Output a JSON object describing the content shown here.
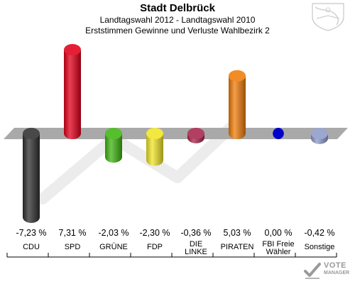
{
  "header": {
    "title": "Stadt Delbrück",
    "subtitle": "Landtagswahl 2012 - Landtagswahl 2010",
    "subtitle2": "Erststimmen Gewinne und Verluste Wahlbezirk 2"
  },
  "logo": {
    "line1": "VOTE",
    "line2": "MANAGER"
  },
  "chart_data": {
    "type": "bar",
    "title": "Landtagswahl 2012 - Landtagswahl 2010",
    "categories": [
      "CDU",
      "SPD",
      "GRÜNE",
      "FDP",
      "DIE LINKE",
      "PIRATEN",
      "FBI Freie Wähler",
      "Sonstige"
    ],
    "category_lines": [
      [
        "CDU"
      ],
      [
        "SPD"
      ],
      [
        "GRÜNE"
      ],
      [
        "FDP"
      ],
      [
        "DIE",
        "LINKE"
      ],
      [
        "PIRATEN"
      ],
      [
        "FBI Freie",
        "Wähler"
      ],
      [
        "Sonstige"
      ]
    ],
    "values": [
      -7.23,
      7.31,
      -2.03,
      -2.3,
      -0.36,
      5.03,
      0.0,
      -0.42
    ],
    "value_labels": [
      "-7,23 %",
      "7,31 %",
      "-2,03 %",
      "-2,30 %",
      "-0,36 %",
      "5,03 %",
      "0,00 %",
      "-0,42 %"
    ],
    "colors": [
      "#303030",
      "#e2001a",
      "#3fb611",
      "#f0e527",
      "#a8264d",
      "#f07c0a",
      "#0000cc",
      "#8e9bc9"
    ],
    "ylim": [
      -7.23,
      7.31
    ],
    "grid": false
  }
}
